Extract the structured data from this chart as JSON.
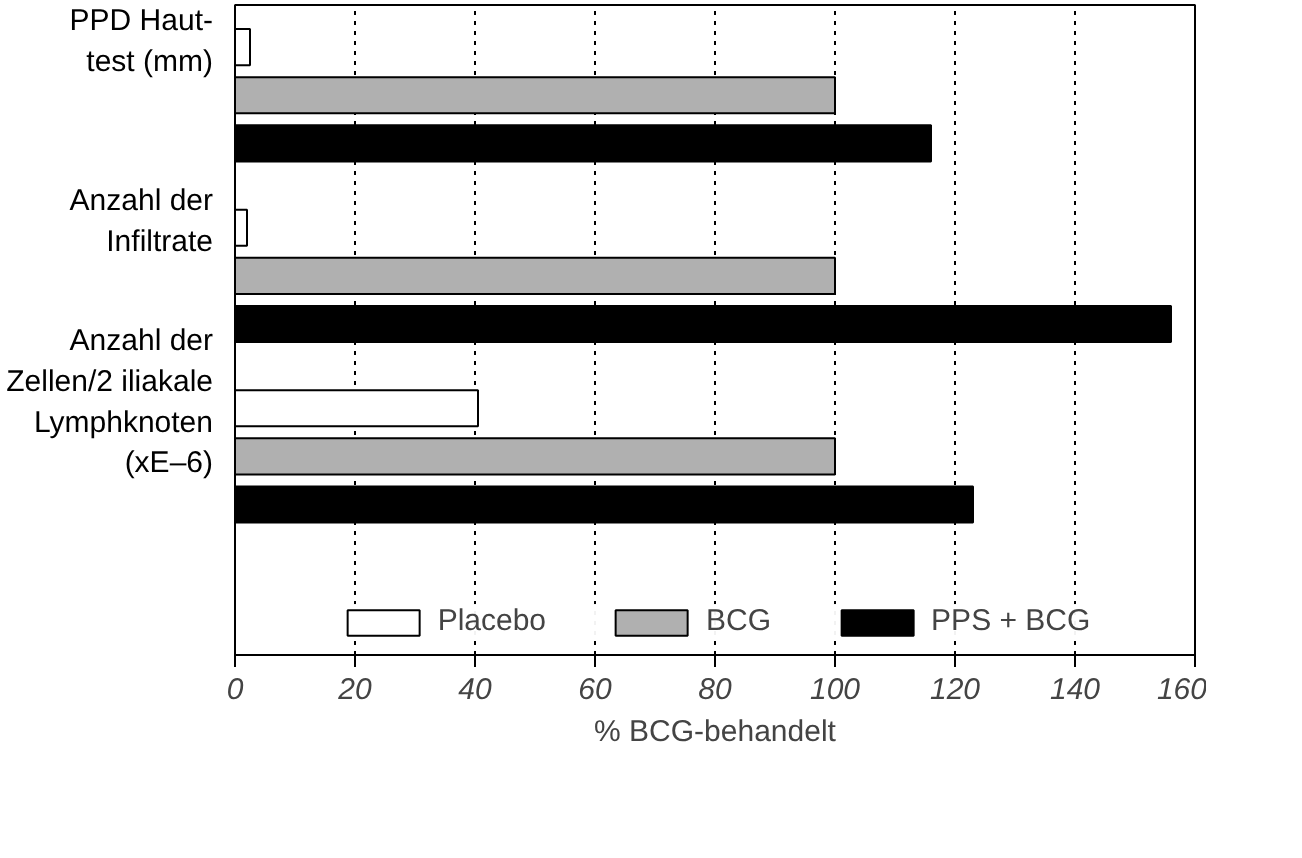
{
  "chart_data": {
    "type": "bar",
    "orientation": "horizontal",
    "xlabel": "% BCG-behandelt",
    "categories": [
      "PPD Haut-\ntest (mm)",
      "Anzahl der\nInfiltrate",
      "Anzahl der\nZellen/2 iliakale\nLymphknoten\n(xE–6)"
    ],
    "series": [
      {
        "name": "Placebo",
        "color": "#ffffff",
        "values": [
          2.5,
          2,
          40.5
        ]
      },
      {
        "name": "BCG",
        "color": "#b0b0b0",
        "values": [
          100,
          100,
          100
        ]
      },
      {
        "name": "PPS + BCG",
        "color": "#000000",
        "values": [
          116,
          156,
          123
        ]
      }
    ],
    "xlim": [
      0,
      160
    ],
    "xticks": [
      0,
      20,
      40,
      60,
      80,
      100,
      120,
      140,
      160
    ],
    "grid": "x",
    "legend": "bottom"
  }
}
